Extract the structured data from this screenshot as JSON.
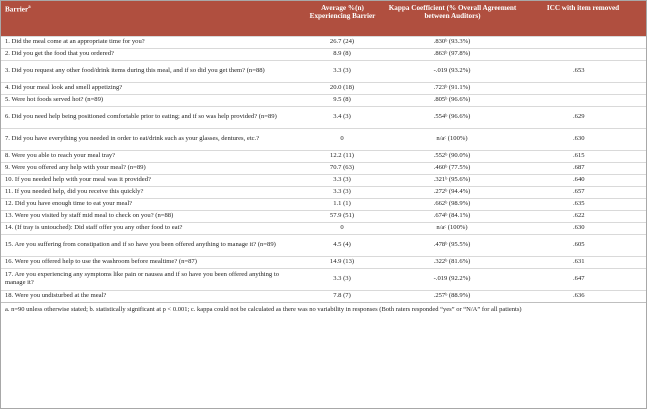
{
  "table": {
    "headers": {
      "barrier": "Barrier",
      "barrier_sup": "a",
      "average": "Average %(n) Experiencing Barrier",
      "kappa": "Kappa Coefficient (% Overall Agreement between Auditors)",
      "icc": "ICC with item removed"
    },
    "rows": [
      {
        "q": "1. Did the meal come at an appropriate time for you?",
        "avg": "26.7 (24)",
        "kappa": ".830ᵇ (93.3%)",
        "icc": ""
      },
      {
        "q": "2. Did you get the food that you ordered?",
        "avg": "8.9 (8)",
        "kappa": ".863ᵇ (97.8%)",
        "icc": ""
      },
      {
        "q": "3. Did you request any other food/drink items during this meal, and if so did you get them? (n=88)",
        "avg": "3.3 (3)",
        "kappa": "-.019 (93.2%)",
        "icc": ".653"
      },
      {
        "q": "4. Did your meal look and smell appetizing?",
        "avg": "20.0 (18)",
        "kappa": ".723ᵇ (91.1%)",
        "icc": ""
      },
      {
        "q": "5. Were hot foods served hot? (n=89)",
        "avg": "9.5 (8)",
        "kappa": ".805ᵇ (96.6%)",
        "icc": ""
      },
      {
        "q": "6. Did you need help being positioned comfortable prior to eating; and if so was help provided? (n=89)",
        "avg": "3.4 (3)",
        "kappa": ".554ᵇ (96.6%)",
        "icc": ".629"
      },
      {
        "q": "7. Did you have everything you needed in order to eat/drink such as your glasses, dentures, etc.?",
        "avg": "0",
        "kappa": "n/aᶜ (100%)",
        "icc": ".630"
      },
      {
        "q": "8. Were you able to reach your meal tray?",
        "avg": "12.2 (11)",
        "kappa": ".552ᵇ (90.0%)",
        "icc": ".615"
      },
      {
        "q": "9. Were you offered any help with your meal? (n=89)",
        "avg": "70.7 (63)",
        "kappa": ".460ᵇ (77.5%)",
        "icc": ".687"
      },
      {
        "q": "10. If you needed help with your meal was it provided?",
        "avg": "3.3 (3)",
        "kappa": ".321ᵇ (95.6%)",
        "icc": ".640"
      },
      {
        "q": "11. If you needed help, did you receive this quickly?",
        "avg": "3.3 (3)",
        "kappa": ".272ᵇ (94.4%)",
        "icc": ".657"
      },
      {
        "q": "12. Did you have enough time to eat your meal?",
        "avg": "1.1 (1)",
        "kappa": ".662ᵇ (98.9%)",
        "icc": ".635"
      },
      {
        "q": "13. Were you visited by staff mid meal to check on you? (n=88)",
        "avg": "57.9 (51)",
        "kappa": ".674ᵇ (84.1%)",
        "icc": ".622"
      },
      {
        "q": "14. (If tray is untouched): Did staff offer you any other food to eat?",
        "avg": "0",
        "kappa": "n/aᶜ (100%)",
        "icc": ".630"
      },
      {
        "q": "15. Are you suffering from constipation and if so have you been offered anything to manage it? (n=89)",
        "avg": "4.5 (4)",
        "kappa": ".478ᵇ (95.5%)",
        "icc": ".605"
      },
      {
        "q": "16. Were you offered help to use the washroom before mealtime? (n=87)",
        "avg": "14.9 (13)",
        "kappa": ".322ᵇ (81.6%)",
        "icc": ".631"
      },
      {
        "q": "17. Are you experiencing any symptoms like pain or nausea and if so have you been offered anything to manage it?",
        "avg": "3.3 (3)",
        "kappa": "-.019 (92.2%)",
        "icc": ".647"
      },
      {
        "q": "18. Were you undisturbed at the meal?",
        "avg": "7.8 (7)",
        "kappa": ".257ᵇ (88.9%)",
        "icc": ".636"
      }
    ],
    "footnote": "a. n=90 unless otherwise stated; b. statistically significant at p < 0.001; c. kappa could not be calculated as there was no variability in responses (Both raters responded “yes” or “N/A” for all patients)"
  }
}
